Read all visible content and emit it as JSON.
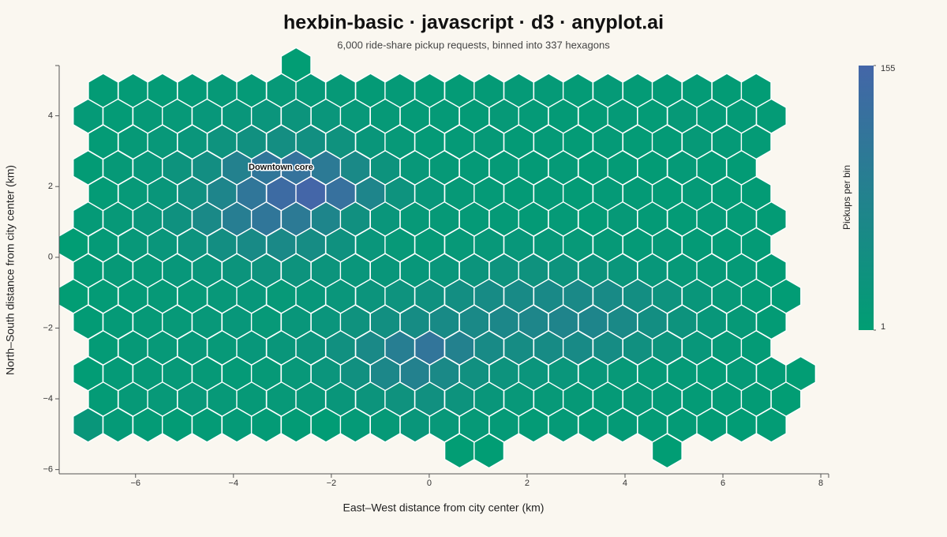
{
  "chart_data": {
    "type": "hexbin",
    "title": "hexbin-basic · javascript · d3 · anyplot.ai",
    "subtitle": "6,000 ride-share pickup requests, binned into 337 hexagons",
    "x_label": "East–West distance from city center (km)",
    "y_label": "North–South distance from city center (km)",
    "xlim": [
      -7.56,
      8.16
    ],
    "ylim": [
      -6.12,
      5.42
    ],
    "xticks": [
      {
        "value": -6,
        "label": "−6"
      },
      {
        "value": -4,
        "label": "−4"
      },
      {
        "value": -2,
        "label": "−2"
      },
      0,
      2,
      4,
      6,
      8
    ],
    "yticks": [
      {
        "value": -6,
        "label": "−6"
      },
      {
        "value": -4,
        "label": "−4"
      },
      {
        "value": -2,
        "label": "−2"
      },
      0,
      2,
      4
    ],
    "colors": [
      "#009e73",
      "#4466a8"
    ],
    "colorbar": {
      "label": "Pickups per bin",
      "ticks": [
        1,
        155
      ]
    },
    "annotations": [
      {
        "text": "Downtown core",
        "x": -3.03,
        "y": 2.54
      }
    ],
    "x": [
      -2.72,
      -6.66,
      -6.05,
      -5.45,
      -4.84,
      -4.23,
      -3.63,
      -3.02,
      -2.42,
      -1.81,
      -1.2,
      -0.6,
      0.01,
      0.62,
      1.22,
      1.83,
      2.44,
      3.04,
      3.65,
      4.26,
      4.86,
      5.47,
      6.08,
      6.68,
      -6.97,
      -6.36,
      -5.75,
      -5.15,
      -4.54,
      -3.93,
      -3.33,
      -2.72,
      -2.11,
      -1.51,
      -0.9,
      -0.29,
      0.31,
      0.92,
      1.53,
      2.13,
      2.74,
      3.35,
      3.95,
      4.56,
      5.17,
      5.77,
      6.38,
      6.99,
      -6.66,
      -6.05,
      -5.45,
      -4.84,
      -4.23,
      -3.63,
      -3.02,
      -2.42,
      -1.81,
      -1.2,
      -0.6,
      0.01,
      0.62,
      1.22,
      1.83,
      2.44,
      3.04,
      3.65,
      4.26,
      4.86,
      5.47,
      6.08,
      6.68,
      -6.97,
      -6.36,
      -5.75,
      -5.15,
      -4.54,
      -3.93,
      -3.33,
      -2.72,
      -2.11,
      -1.51,
      -0.9,
      -0.29,
      0.31,
      0.92,
      1.53,
      2.13,
      2.74,
      3.35,
      3.95,
      4.56,
      5.17,
      5.77,
      6.38,
      -6.66,
      -6.05,
      -5.45,
      -4.84,
      -4.23,
      -3.63,
      -3.02,
      -2.42,
      -1.81,
      -1.2,
      -0.6,
      0.01,
      0.62,
      1.22,
      1.83,
      2.44,
      3.04,
      3.65,
      4.26,
      4.86,
      5.47,
      6.08,
      6.68,
      -6.97,
      -6.36,
      -5.75,
      -5.15,
      -4.54,
      -3.93,
      -3.33,
      -2.72,
      -2.11,
      -1.51,
      -0.9,
      -0.29,
      0.31,
      0.92,
      1.53,
      2.13,
      2.74,
      3.35,
      3.95,
      4.56,
      5.17,
      5.77,
      6.38,
      6.99,
      -7.27,
      -6.66,
      -6.05,
      -5.45,
      -4.84,
      -4.23,
      -3.63,
      -3.02,
      -2.42,
      -1.81,
      -1.2,
      -0.6,
      0.01,
      0.62,
      1.22,
      1.83,
      2.44,
      3.04,
      3.65,
      4.26,
      4.86,
      5.47,
      6.08,
      6.68,
      -6.97,
      -6.36,
      -5.75,
      -5.15,
      -4.54,
      -3.93,
      -3.33,
      -2.72,
      -2.11,
      -1.51,
      -0.9,
      -0.29,
      0.31,
      0.92,
      1.53,
      2.13,
      2.74,
      3.35,
      3.95,
      4.56,
      5.17,
      5.77,
      6.38,
      6.99,
      -7.27,
      -6.66,
      -6.05,
      -5.45,
      -4.84,
      -4.23,
      -3.63,
      -3.02,
      -2.42,
      -1.81,
      -1.2,
      -0.6,
      0.01,
      0.62,
      1.22,
      1.83,
      2.44,
      3.04,
      3.65,
      4.26,
      4.86,
      5.47,
      6.08,
      6.68,
      7.29,
      -6.97,
      -6.36,
      -5.75,
      -5.15,
      -4.54,
      -3.93,
      -3.33,
      -2.72,
      -2.11,
      -1.51,
      -0.9,
      -0.29,
      0.31,
      0.92,
      1.53,
      2.13,
      2.74,
      3.35,
      3.95,
      4.56,
      5.17,
      5.77,
      6.38,
      6.99,
      -6.66,
      -6.05,
      -5.45,
      -4.84,
      -4.23,
      -3.63,
      -3.02,
      -2.42,
      -1.81,
      -1.2,
      -0.6,
      0.01,
      0.62,
      1.22,
      1.83,
      2.44,
      3.04,
      3.65,
      4.26,
      4.86,
      5.47,
      6.08,
      6.68,
      -6.97,
      -6.36,
      -5.75,
      -5.15,
      -4.54,
      -3.93,
      -3.33,
      -2.72,
      -2.11,
      -1.51,
      -0.9,
      -0.29,
      0.31,
      0.92,
      1.53,
      2.13,
      2.74,
      3.35,
      3.95,
      4.56,
      5.17,
      5.77,
      6.38,
      6.99,
      7.59,
      -6.66,
      -6.05,
      -5.45,
      -4.84,
      -4.23,
      -3.63,
      -3.02,
      -2.42,
      -1.81,
      -1.2,
      -0.6,
      0.01,
      0.62,
      1.22,
      1.83,
      2.44,
      3.04,
      3.65,
      4.26,
      4.86,
      5.47,
      6.08,
      6.68,
      7.29,
      -6.97,
      -6.36,
      -5.75,
      -5.15,
      -4.54,
      -3.93,
      -3.33,
      -2.72,
      -2.11,
      -1.51,
      -0.9,
      -0.29,
      0.31,
      0.92,
      1.53,
      2.13,
      2.74,
      3.35,
      3.95,
      4.56,
      5.17,
      5.77,
      6.38,
      6.99,
      0.62,
      1.22,
      4.86
    ],
    "y": [
      5.44,
      4.71,
      4.71,
      4.71,
      4.71,
      4.71,
      4.71,
      4.71,
      4.71,
      4.71,
      4.71,
      4.71,
      4.71,
      4.71,
      4.71,
      4.71,
      4.71,
      4.71,
      4.71,
      4.71,
      4.71,
      4.71,
      4.71,
      4.71,
      3.99,
      3.99,
      3.99,
      3.99,
      3.99,
      3.99,
      3.99,
      3.99,
      3.99,
      3.99,
      3.99,
      3.99,
      3.99,
      3.99,
      3.99,
      3.99,
      3.99,
      3.99,
      3.99,
      3.99,
      3.99,
      3.99,
      3.99,
      3.99,
      3.26,
      3.26,
      3.26,
      3.26,
      3.26,
      3.26,
      3.26,
      3.26,
      3.26,
      3.26,
      3.26,
      3.26,
      3.26,
      3.26,
      3.26,
      3.26,
      3.26,
      3.26,
      3.26,
      3.26,
      3.26,
      3.26,
      3.26,
      2.53,
      2.53,
      2.53,
      2.53,
      2.53,
      2.53,
      2.53,
      2.53,
      2.53,
      2.53,
      2.53,
      2.53,
      2.53,
      2.53,
      2.53,
      2.53,
      2.53,
      2.53,
      2.53,
      2.53,
      2.53,
      2.53,
      2.53,
      1.8,
      1.8,
      1.8,
      1.8,
      1.8,
      1.8,
      1.8,
      1.8,
      1.8,
      1.8,
      1.8,
      1.8,
      1.8,
      1.8,
      1.8,
      1.8,
      1.8,
      1.8,
      1.8,
      1.8,
      1.8,
      1.8,
      1.8,
      1.08,
      1.08,
      1.08,
      1.08,
      1.08,
      1.08,
      1.08,
      1.08,
      1.08,
      1.08,
      1.08,
      1.08,
      1.08,
      1.08,
      1.08,
      1.08,
      1.08,
      1.08,
      1.08,
      1.08,
      1.08,
      1.08,
      1.08,
      1.08,
      0.35,
      0.35,
      0.35,
      0.35,
      0.35,
      0.35,
      0.35,
      0.35,
      0.35,
      0.35,
      0.35,
      0.35,
      0.35,
      0.35,
      0.35,
      0.35,
      0.35,
      0.35,
      0.35,
      0.35,
      0.35,
      0.35,
      0.35,
      0.35,
      -0.38,
      -0.38,
      -0.38,
      -0.38,
      -0.38,
      -0.38,
      -0.38,
      -0.38,
      -0.38,
      -0.38,
      -0.38,
      -0.38,
      -0.38,
      -0.38,
      -0.38,
      -0.38,
      -0.38,
      -0.38,
      -0.38,
      -0.38,
      -0.38,
      -0.38,
      -0.38,
      -0.38,
      -1.1,
      -1.1,
      -1.1,
      -1.1,
      -1.1,
      -1.1,
      -1.1,
      -1.1,
      -1.1,
      -1.1,
      -1.1,
      -1.1,
      -1.1,
      -1.1,
      -1.1,
      -1.1,
      -1.1,
      -1.1,
      -1.1,
      -1.1,
      -1.1,
      -1.1,
      -1.1,
      -1.1,
      -1.1,
      -1.83,
      -1.83,
      -1.83,
      -1.83,
      -1.83,
      -1.83,
      -1.83,
      -1.83,
      -1.83,
      -1.83,
      -1.83,
      -1.83,
      -1.83,
      -1.83,
      -1.83,
      -1.83,
      -1.83,
      -1.83,
      -1.83,
      -1.83,
      -1.83,
      -1.83,
      -1.83,
      -1.83,
      -2.56,
      -2.56,
      -2.56,
      -2.56,
      -2.56,
      -2.56,
      -2.56,
      -2.56,
      -2.56,
      -2.56,
      -2.56,
      -2.56,
      -2.56,
      -2.56,
      -2.56,
      -2.56,
      -2.56,
      -2.56,
      -2.56,
      -2.56,
      -2.56,
      -2.56,
      -2.56,
      -3.29,
      -3.29,
      -3.29,
      -3.29,
      -3.29,
      -3.29,
      -3.29,
      -3.29,
      -3.29,
      -3.29,
      -3.29,
      -3.29,
      -3.29,
      -3.29,
      -3.29,
      -3.29,
      -3.29,
      -3.29,
      -3.29,
      -3.29,
      -3.29,
      -3.29,
      -3.29,
      -3.29,
      -3.29,
      -4.01,
      -4.01,
      -4.01,
      -4.01,
      -4.01,
      -4.01,
      -4.01,
      -4.01,
      -4.01,
      -4.01,
      -4.01,
      -4.01,
      -4.01,
      -4.01,
      -4.01,
      -4.01,
      -4.01,
      -4.01,
      -4.01,
      -4.01,
      -4.01,
      -4.01,
      -4.01,
      -4.01,
      -4.74,
      -4.74,
      -4.74,
      -4.74,
      -4.74,
      -4.74,
      -4.74,
      -4.74,
      -4.74,
      -4.74,
      -4.74,
      -4.74,
      -4.74,
      -4.74,
      -4.74,
      -4.74,
      -4.74,
      -4.74,
      -4.74,
      -4.74,
      -4.74,
      -4.74,
      -4.74,
      -4.74,
      -5.47,
      -5.47,
      -5.47
    ],
    "values": [
      5,
      8,
      10,
      9,
      12,
      14,
      13,
      16,
      15,
      14,
      11,
      12,
      9,
      10,
      11,
      12,
      13,
      10,
      12,
      9,
      11,
      10,
      8,
      6,
      12,
      10,
      14,
      16,
      20,
      22,
      26,
      28,
      24,
      18,
      14,
      13,
      12,
      11,
      14,
      12,
      11,
      10,
      13,
      9,
      14,
      12,
      11,
      10,
      10,
      14,
      18,
      24,
      32,
      40,
      46,
      42,
      34,
      22,
      16,
      13,
      12,
      14,
      11,
      13,
      10,
      12,
      9,
      11,
      14,
      12,
      10,
      8,
      14,
      20,
      30,
      44,
      80,
      110,
      120,
      100,
      60,
      30,
      18,
      14,
      12,
      13,
      11,
      12,
      9,
      10,
      8,
      12,
      10,
      8,
      10,
      16,
      22,
      40,
      70,
      110,
      140,
      155,
      125,
      70,
      32,
      20,
      14,
      13,
      11,
      12,
      10,
      13,
      11,
      9,
      12,
      10,
      8,
      12,
      16,
      24,
      36,
      60,
      90,
      110,
      100,
      70,
      40,
      24,
      16,
      14,
      12,
      13,
      11,
      12,
      10,
      14,
      11,
      10,
      12,
      9,
      8,
      4,
      12,
      18,
      24,
      32,
      44,
      56,
      60,
      50,
      36,
      24,
      16,
      14,
      16,
      18,
      20,
      18,
      16,
      14,
      12,
      14,
      11,
      10,
      9,
      10,
      14,
      16,
      20,
      24,
      28,
      32,
      30,
      28,
      24,
      22,
      20,
      24,
      28,
      32,
      34,
      30,
      28,
      24,
      20,
      16,
      14,
      12,
      8,
      5,
      10,
      12,
      14,
      16,
      18,
      20,
      16,
      20,
      24,
      28,
      32,
      36,
      44,
      52,
      56,
      58,
      60,
      56,
      44,
      32,
      22,
      16,
      10,
      6,
      8,
      12,
      14,
      16,
      18,
      20,
      16,
      22,
      26,
      34,
      42,
      50,
      56,
      60,
      64,
      68,
      72,
      70,
      60,
      44,
      30,
      20,
      14,
      8,
      10,
      14,
      16,
      18,
      16,
      20,
      22,
      28,
      40,
      60,
      90,
      115,
      80,
      56,
      50,
      52,
      56,
      50,
      40,
      28,
      20,
      14,
      10,
      6,
      12,
      14,
      16,
      14,
      12,
      14,
      18,
      26,
      40,
      64,
      80,
      60,
      40,
      30,
      26,
      24,
      20,
      16,
      14,
      12,
      10,
      12,
      8,
      5,
      10,
      14,
      16,
      18,
      16,
      14,
      16,
      18,
      22,
      28,
      34,
      40,
      30,
      22,
      18,
      16,
      14,
      12,
      14,
      12,
      10,
      9,
      8,
      5,
      22,
      12,
      10,
      8,
      10,
      12,
      10,
      8,
      6,
      12,
      14,
      22,
      18,
      14,
      12,
      10,
      12,
      10,
      11,
      9,
      10,
      8,
      6,
      7,
      5,
      4,
      3
    ]
  }
}
